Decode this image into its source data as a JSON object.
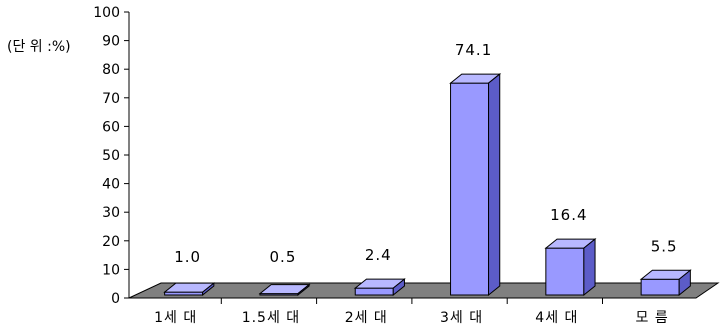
{
  "chart_data": {
    "type": "bar",
    "three_d": true,
    "unit_label": "(단 위 :%)",
    "categories": [
      "1세 대",
      "1.5세 대",
      "2세 대",
      "3세 대",
      "4세 대",
      "모 름"
    ],
    "values": [
      1.0,
      0.5,
      2.4,
      74.1,
      16.4,
      5.5
    ],
    "value_labels": [
      "1.0",
      "0.5",
      "2.4",
      "74.1",
      "16.4",
      "5.5"
    ],
    "y_ticks": [
      "0",
      "10",
      "20",
      "30",
      "40",
      "50",
      "60",
      "70",
      "80",
      "90",
      "100"
    ],
    "ylim": [
      0,
      100
    ],
    "grid": false,
    "legend": "none",
    "colors": {
      "bar_front": "#9999ff",
      "bar_top": "#b8b8ff",
      "bar_side": "#5c5cc8",
      "floor": "#808080",
      "outline": "#000000"
    }
  }
}
